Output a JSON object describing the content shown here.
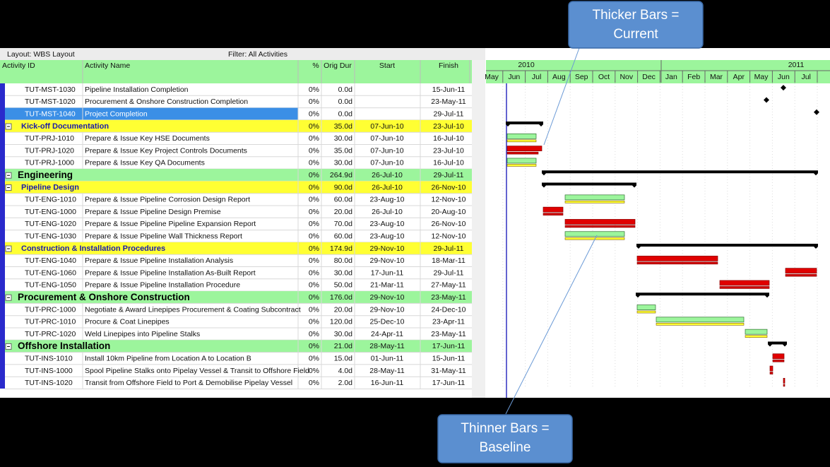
{
  "toolbar": {
    "layout": "Layout: WBS Layout",
    "filter": "Filter: All Activities"
  },
  "columns": [
    "Activity ID",
    "Activity Name",
    "%",
    "Orig Dur",
    "Start",
    "Finish"
  ],
  "timescale": {
    "years": [
      "2010",
      "2011"
    ],
    "months": [
      "May",
      "Jun",
      "Jul",
      "Aug",
      "Sep",
      "Oct",
      "Nov",
      "Dec",
      "Jan",
      "Feb",
      "Mar",
      "Apr",
      "May",
      "Jun",
      "Jul"
    ]
  },
  "rows": [
    {
      "id": "TUT-MST-1030",
      "name": "Pipeline Installation Completion",
      "pct": "0%",
      "dur": "0.0d",
      "start": "",
      "finish": "15-Jun-11"
    },
    {
      "id": "TUT-MST-1020",
      "name": "Procurement & Onshore Construction Completion",
      "pct": "0%",
      "dur": "0.0d",
      "start": "",
      "finish": "23-May-11"
    },
    {
      "id": "TUT-MST-1040",
      "name": "Project Completion",
      "pct": "0%",
      "dur": "0.0d",
      "start": "",
      "finish": "29-Jul-11"
    },
    {
      "name": "Kick-off Documentation",
      "pct": "0%",
      "dur": "35.0d",
      "start": "07-Jun-10",
      "finish": "23-Jul-10"
    },
    {
      "id": "TUT-PRJ-1010",
      "name": "Prepare & Issue Key HSE Documents",
      "pct": "0%",
      "dur": "30.0d",
      "start": "07-Jun-10",
      "finish": "16-Jul-10"
    },
    {
      "id": "TUT-PRJ-1020",
      "name": "Prepare & Issue Key Project Controls Documents",
      "pct": "0%",
      "dur": "35.0d",
      "start": "07-Jun-10",
      "finish": "23-Jul-10"
    },
    {
      "id": "TUT-PRJ-1000",
      "name": "Prepare & Issue Key QA Documents",
      "pct": "0%",
      "dur": "30.0d",
      "start": "07-Jun-10",
      "finish": "16-Jul-10"
    },
    {
      "name": "Engineering",
      "pct": "0%",
      "dur": "264.9d",
      "start": "26-Jul-10",
      "finish": "29-Jul-11"
    },
    {
      "name": "Pipeline Design",
      "pct": "0%",
      "dur": "90.0d",
      "start": "26-Jul-10",
      "finish": "26-Nov-10"
    },
    {
      "id": "TUT-ENG-1010",
      "name": "Prepare & Issue Pipeline Corrosion Design Report",
      "pct": "0%",
      "dur": "60.0d",
      "start": "23-Aug-10",
      "finish": "12-Nov-10"
    },
    {
      "id": "TUT-ENG-1000",
      "name": "Prepare & Issue Pipeline Design Premise",
      "pct": "0%",
      "dur": "20.0d",
      "start": "26-Jul-10",
      "finish": "20-Aug-10"
    },
    {
      "id": "TUT-ENG-1020",
      "name": "Prepare & Issue Pipeline Pipeline Expansion Report",
      "pct": "0%",
      "dur": "70.0d",
      "start": "23-Aug-10",
      "finish": "26-Nov-10"
    },
    {
      "id": "TUT-ENG-1030",
      "name": "Prepare & Issue Pipeline Wall Thickness Report",
      "pct": "0%",
      "dur": "60.0d",
      "start": "23-Aug-10",
      "finish": "12-Nov-10"
    },
    {
      "name": "Construction & Installation Procedures",
      "pct": "0%",
      "dur": "174.9d",
      "start": "29-Nov-10",
      "finish": "29-Jul-11"
    },
    {
      "id": "TUT-ENG-1040",
      "name": "Prepare & Issue Pipeline Installation Analysis",
      "pct": "0%",
      "dur": "80.0d",
      "start": "29-Nov-10",
      "finish": "18-Mar-11"
    },
    {
      "id": "TUT-ENG-1060",
      "name": "Prepare & Issue Pipeline Installation As-Built Report",
      "pct": "0%",
      "dur": "30.0d",
      "start": "17-Jun-11",
      "finish": "29-Jul-11"
    },
    {
      "id": "TUT-ENG-1050",
      "name": "Prepare & Issue Pipeline Installation Procedure",
      "pct": "0%",
      "dur": "50.0d",
      "start": "21-Mar-11",
      "finish": "27-May-11"
    },
    {
      "name": "Procurement & Onshore Construction",
      "pct": "0%",
      "dur": "176.0d",
      "start": "29-Nov-10",
      "finish": "23-May-11"
    },
    {
      "id": "TUT-PRC-1000",
      "name": "Negotiate & Award Linepipes Procurement & Coating Subcontract",
      "pct": "0%",
      "dur": "20.0d",
      "start": "29-Nov-10",
      "finish": "24-Dec-10"
    },
    {
      "id": "TUT-PRC-1010",
      "name": "Procure & Coat Linepipes",
      "pct": "0%",
      "dur": "120.0d",
      "start": "25-Dec-10",
      "finish": "23-Apr-11"
    },
    {
      "id": "TUT-PRC-1020",
      "name": "Weld Linepipes into Pipeline Stalks",
      "pct": "0%",
      "dur": "30.0d",
      "start": "24-Apr-11",
      "finish": "23-May-11"
    },
    {
      "name": "Offshore Installation",
      "pct": "0%",
      "dur": "21.0d",
      "start": "28-May-11",
      "finish": "17-Jun-11"
    },
    {
      "id": "TUT-INS-1010",
      "name": "Install 10km Pipeline from Location A to Location B",
      "pct": "0%",
      "dur": "15.0d",
      "start": "01-Jun-11",
      "finish": "15-Jun-11"
    },
    {
      "id": "TUT-INS-1000",
      "name": "Spool Pipeline Stalks onto Pipelay Vessel & Transit to Offshore Field",
      "pct": "0%",
      "dur": "4.0d",
      "start": "28-May-11",
      "finish": "31-May-11"
    },
    {
      "id": "TUT-INS-1020",
      "name": "Transit from Offshore Field to Port & Demobilise Pipelay Vessel",
      "pct": "0%",
      "dur": "2.0d",
      "start": "16-Jun-11",
      "finish": "17-Jun-11"
    }
  ],
  "callouts": {
    "current": [
      "Thicker Bars =",
      "Current"
    ],
    "baseline": [
      "Thinner Bars =",
      "Baseline"
    ]
  }
}
